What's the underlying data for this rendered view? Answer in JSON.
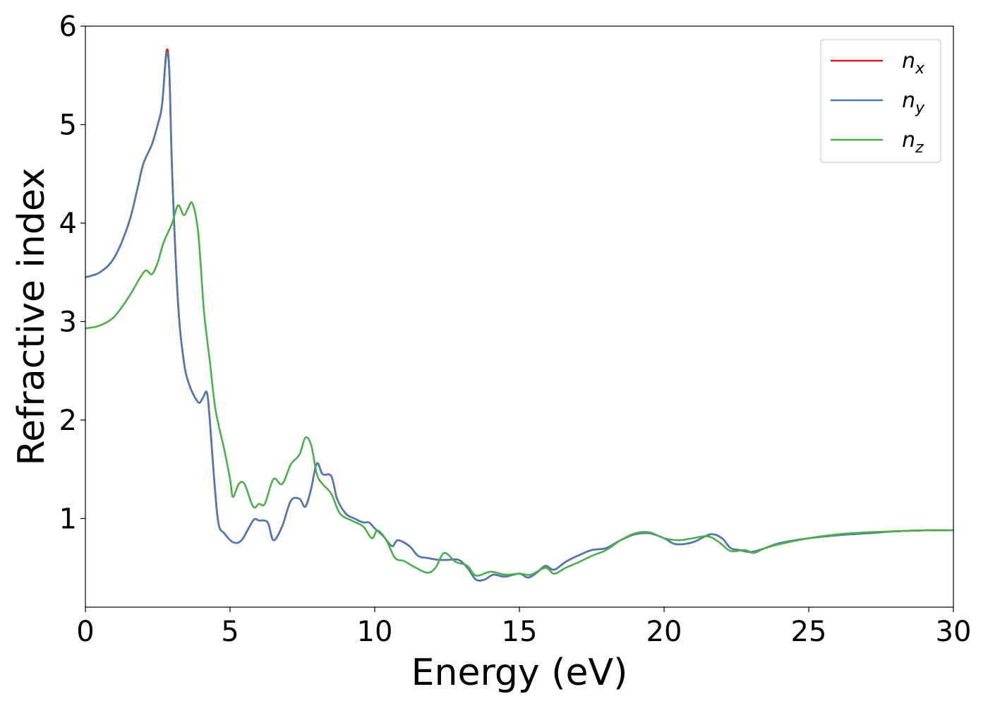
{
  "chart_data": {
    "type": "line",
    "xlabel": "Energy (eV)",
    "ylabel": "Refractive index",
    "xlim": [
      0,
      30
    ],
    "ylim": [
      0.1,
      6.0
    ],
    "xticks": [
      "0",
      "5",
      "10",
      "15",
      "20",
      "25",
      "30"
    ],
    "yticks": [
      "1",
      "2",
      "3",
      "4",
      "5",
      "6"
    ],
    "grid": false,
    "legend_position": "top-right",
    "series": [
      {
        "name": "n_x",
        "label_main": "n",
        "label_sub": "x",
        "color": "#e41a1c",
        "points": [
          [
            0,
            3.45
          ],
          [
            0.5,
            3.5
          ],
          [
            1.0,
            3.65
          ],
          [
            1.5,
            4.0
          ],
          [
            1.8,
            4.35
          ],
          [
            2.0,
            4.6
          ],
          [
            2.3,
            4.8
          ],
          [
            2.5,
            5.0
          ],
          [
            2.65,
            5.2
          ],
          [
            2.8,
            5.74
          ],
          [
            2.9,
            5.55
          ],
          [
            3.0,
            4.5
          ],
          [
            3.2,
            3.2
          ],
          [
            3.4,
            2.6
          ],
          [
            3.6,
            2.35
          ],
          [
            3.9,
            2.18
          ],
          [
            4.05,
            2.22
          ],
          [
            4.2,
            2.28
          ],
          [
            4.3,
            2.0
          ],
          [
            4.45,
            1.4
          ],
          [
            4.6,
            0.95
          ],
          [
            4.8,
            0.85
          ],
          [
            5.1,
            0.76
          ],
          [
            5.4,
            0.78
          ],
          [
            5.8,
            0.98
          ],
          [
            6.0,
            0.98
          ],
          [
            6.3,
            0.96
          ],
          [
            6.5,
            0.78
          ],
          [
            6.8,
            0.92
          ],
          [
            7.1,
            1.18
          ],
          [
            7.4,
            1.2
          ],
          [
            7.6,
            1.12
          ],
          [
            7.8,
            1.3
          ],
          [
            8.0,
            1.56
          ],
          [
            8.2,
            1.45
          ],
          [
            8.5,
            1.43
          ],
          [
            8.7,
            1.2
          ],
          [
            9.0,
            1.05
          ],
          [
            9.3,
            1.0
          ],
          [
            9.6,
            0.96
          ],
          [
            9.8,
            0.96
          ],
          [
            10.0,
            0.9
          ],
          [
            10.3,
            0.82
          ],
          [
            10.6,
            0.72
          ],
          [
            10.8,
            0.78
          ],
          [
            11.2,
            0.72
          ],
          [
            11.5,
            0.62
          ],
          [
            11.8,
            0.6
          ],
          [
            12.2,
            0.58
          ],
          [
            12.5,
            0.58
          ],
          [
            12.9,
            0.58
          ],
          [
            13.2,
            0.5
          ],
          [
            13.5,
            0.38
          ],
          [
            13.8,
            0.38
          ],
          [
            14.1,
            0.43
          ],
          [
            14.5,
            0.41
          ],
          [
            15.0,
            0.44
          ],
          [
            15.3,
            0.4
          ],
          [
            15.6,
            0.45
          ],
          [
            15.9,
            0.52
          ],
          [
            16.2,
            0.48
          ],
          [
            16.6,
            0.56
          ],
          [
            17.0,
            0.62
          ],
          [
            17.5,
            0.68
          ],
          [
            18.0,
            0.7
          ],
          [
            18.5,
            0.78
          ],
          [
            19.0,
            0.84
          ],
          [
            19.5,
            0.85
          ],
          [
            20.0,
            0.8
          ],
          [
            20.4,
            0.74
          ],
          [
            21.0,
            0.76
          ],
          [
            21.6,
            0.84
          ],
          [
            22.0,
            0.8
          ],
          [
            22.3,
            0.7
          ],
          [
            22.6,
            0.68
          ],
          [
            23.0,
            0.66
          ],
          [
            23.5,
            0.7
          ],
          [
            24.0,
            0.75
          ],
          [
            25.0,
            0.8
          ],
          [
            26.0,
            0.83
          ],
          [
            27.0,
            0.85
          ],
          [
            28.0,
            0.87
          ],
          [
            29.0,
            0.88
          ],
          [
            30.0,
            0.88
          ]
        ]
      },
      {
        "name": "n_y",
        "label_main": "n",
        "label_sub": "y",
        "color": "#4a7ab5",
        "points": [
          [
            0,
            3.45
          ],
          [
            0.5,
            3.5
          ],
          [
            1.0,
            3.65
          ],
          [
            1.5,
            4.0
          ],
          [
            1.8,
            4.35
          ],
          [
            2.0,
            4.6
          ],
          [
            2.3,
            4.8
          ],
          [
            2.5,
            5.0
          ],
          [
            2.65,
            5.2
          ],
          [
            2.8,
            5.71
          ],
          [
            2.9,
            5.53
          ],
          [
            3.0,
            4.5
          ],
          [
            3.2,
            3.2
          ],
          [
            3.4,
            2.6
          ],
          [
            3.6,
            2.35
          ],
          [
            3.9,
            2.18
          ],
          [
            4.05,
            2.22
          ],
          [
            4.2,
            2.28
          ],
          [
            4.3,
            2.0
          ],
          [
            4.45,
            1.4
          ],
          [
            4.6,
            0.95
          ],
          [
            4.8,
            0.85
          ],
          [
            5.1,
            0.76
          ],
          [
            5.4,
            0.78
          ],
          [
            5.8,
            0.98
          ],
          [
            6.0,
            0.98
          ],
          [
            6.3,
            0.96
          ],
          [
            6.5,
            0.78
          ],
          [
            6.8,
            0.92
          ],
          [
            7.1,
            1.18
          ],
          [
            7.4,
            1.2
          ],
          [
            7.6,
            1.12
          ],
          [
            7.8,
            1.3
          ],
          [
            8.0,
            1.56
          ],
          [
            8.2,
            1.45
          ],
          [
            8.5,
            1.43
          ],
          [
            8.7,
            1.2
          ],
          [
            9.0,
            1.05
          ],
          [
            9.3,
            1.0
          ],
          [
            9.6,
            0.96
          ],
          [
            9.8,
            0.96
          ],
          [
            10.0,
            0.9
          ],
          [
            10.3,
            0.82
          ],
          [
            10.6,
            0.72
          ],
          [
            10.8,
            0.78
          ],
          [
            11.2,
            0.72
          ],
          [
            11.5,
            0.62
          ],
          [
            11.8,
            0.6
          ],
          [
            12.2,
            0.58
          ],
          [
            12.5,
            0.58
          ],
          [
            12.9,
            0.58
          ],
          [
            13.2,
            0.5
          ],
          [
            13.5,
            0.38
          ],
          [
            13.8,
            0.38
          ],
          [
            14.1,
            0.43
          ],
          [
            14.5,
            0.41
          ],
          [
            15.0,
            0.44
          ],
          [
            15.3,
            0.4
          ],
          [
            15.6,
            0.45
          ],
          [
            15.9,
            0.52
          ],
          [
            16.2,
            0.48
          ],
          [
            16.6,
            0.56
          ],
          [
            17.0,
            0.62
          ],
          [
            17.5,
            0.68
          ],
          [
            18.0,
            0.7
          ],
          [
            18.5,
            0.78
          ],
          [
            19.0,
            0.84
          ],
          [
            19.5,
            0.85
          ],
          [
            20.0,
            0.8
          ],
          [
            20.4,
            0.74
          ],
          [
            21.0,
            0.76
          ],
          [
            21.6,
            0.84
          ],
          [
            22.0,
            0.8
          ],
          [
            22.3,
            0.7
          ],
          [
            22.6,
            0.68
          ],
          [
            23.0,
            0.66
          ],
          [
            23.5,
            0.7
          ],
          [
            24.0,
            0.75
          ],
          [
            25.0,
            0.8
          ],
          [
            26.0,
            0.83
          ],
          [
            27.0,
            0.85
          ],
          [
            28.0,
            0.87
          ],
          [
            29.0,
            0.88
          ],
          [
            30.0,
            0.88
          ]
        ]
      },
      {
        "name": "n_z",
        "label_main": "n",
        "label_sub": "z",
        "color": "#4daf4a",
        "points": [
          [
            0,
            2.93
          ],
          [
            0.5,
            2.96
          ],
          [
            1.0,
            3.05
          ],
          [
            1.5,
            3.25
          ],
          [
            1.9,
            3.45
          ],
          [
            2.1,
            3.52
          ],
          [
            2.3,
            3.48
          ],
          [
            2.5,
            3.6
          ],
          [
            2.7,
            3.8
          ],
          [
            3.0,
            4.0
          ],
          [
            3.2,
            4.18
          ],
          [
            3.4,
            4.08
          ],
          [
            3.55,
            4.15
          ],
          [
            3.7,
            4.2
          ],
          [
            3.9,
            3.9
          ],
          [
            4.1,
            3.1
          ],
          [
            4.3,
            2.6
          ],
          [
            4.5,
            2.1
          ],
          [
            4.8,
            1.7
          ],
          [
            5.0,
            1.4
          ],
          [
            5.1,
            1.22
          ],
          [
            5.3,
            1.35
          ],
          [
            5.5,
            1.35
          ],
          [
            5.8,
            1.12
          ],
          [
            6.0,
            1.15
          ],
          [
            6.2,
            1.15
          ],
          [
            6.5,
            1.4
          ],
          [
            6.8,
            1.35
          ],
          [
            7.1,
            1.55
          ],
          [
            7.4,
            1.65
          ],
          [
            7.6,
            1.82
          ],
          [
            7.8,
            1.75
          ],
          [
            8.0,
            1.45
          ],
          [
            8.2,
            1.35
          ],
          [
            8.5,
            1.25
          ],
          [
            8.8,
            1.05
          ],
          [
            9.2,
            0.98
          ],
          [
            9.6,
            0.92
          ],
          [
            9.9,
            0.8
          ],
          [
            10.1,
            0.88
          ],
          [
            10.4,
            0.78
          ],
          [
            10.7,
            0.6
          ],
          [
            11.0,
            0.57
          ],
          [
            11.3,
            0.52
          ],
          [
            11.8,
            0.45
          ],
          [
            12.1,
            0.5
          ],
          [
            12.4,
            0.65
          ],
          [
            12.8,
            0.56
          ],
          [
            13.2,
            0.52
          ],
          [
            13.5,
            0.42
          ],
          [
            14.0,
            0.46
          ],
          [
            14.5,
            0.43
          ],
          [
            15.0,
            0.44
          ],
          [
            15.4,
            0.43
          ],
          [
            15.9,
            0.5
          ],
          [
            16.2,
            0.44
          ],
          [
            16.6,
            0.5
          ],
          [
            17.0,
            0.55
          ],
          [
            17.5,
            0.62
          ],
          [
            18.0,
            0.68
          ],
          [
            18.5,
            0.78
          ],
          [
            19.0,
            0.85
          ],
          [
            19.5,
            0.86
          ],
          [
            20.0,
            0.8
          ],
          [
            20.5,
            0.78
          ],
          [
            21.0,
            0.8
          ],
          [
            21.5,
            0.82
          ],
          [
            21.9,
            0.76
          ],
          [
            22.3,
            0.67
          ],
          [
            22.8,
            0.68
          ],
          [
            23.1,
            0.65
          ],
          [
            23.5,
            0.7
          ],
          [
            24.0,
            0.74
          ],
          [
            25.0,
            0.8
          ],
          [
            26.0,
            0.84
          ],
          [
            27.0,
            0.86
          ],
          [
            28.0,
            0.87
          ],
          [
            29.0,
            0.88
          ],
          [
            30.0,
            0.88
          ]
        ]
      }
    ]
  }
}
